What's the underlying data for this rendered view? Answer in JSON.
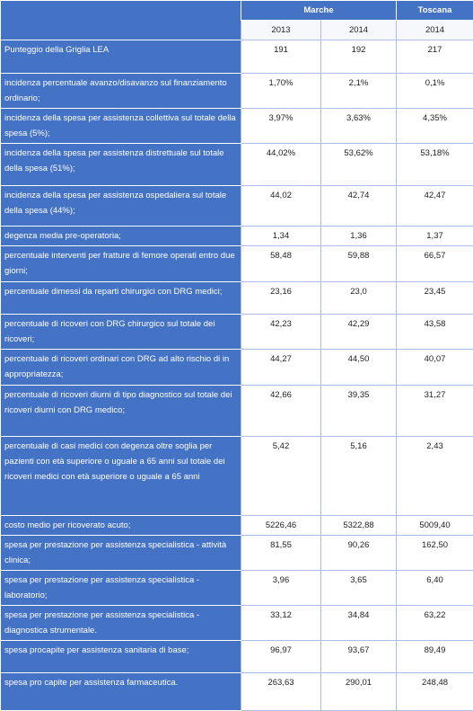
{
  "table": {
    "header": {
      "groups": [
        "Marche",
        "Toscana"
      ],
      "years": [
        "2013",
        "2014",
        "2014"
      ]
    },
    "rows": [
      [
        "Punteggio della Griglia LEA",
        "191",
        "192",
        "217"
      ],
      [
        "incidenza percentuale avanzo/disavanzo sul finanziamento ordinario;",
        "1,70%",
        "2,1%",
        "0,1%"
      ],
      [
        "incidenza della spesa per assistenza collettiva sul totale della spesa (5%);",
        "3,97%",
        "3,63%",
        "4,35%"
      ],
      [
        "incidenza della spesa per assistenza distrettuale sul totale della spesa (51%);",
        "44,02%",
        "53,62%",
        "53,18%"
      ],
      [
        "incidenza della spesa per assistenza ospedaliera sul totale della spesa (44%);",
        "44,02",
        "42,74",
        "42,47"
      ],
      [
        "degenza media pre-operatoria;",
        "1,34",
        "1,36",
        "1,37"
      ],
      [
        "percentuale interventi per fratture di femore operati entro due giorni;",
        "58,48",
        "59,88",
        "66,57"
      ],
      [
        "percentuale dimessi da reparti chirurgici con DRG medici;",
        "23,16",
        "23,0",
        "23,45"
      ],
      [
        "percentuale di ricoveri con DRG chirurgico sul totale dei ricoveri;",
        "42,23",
        "42,29",
        "43,58"
      ],
      [
        "percentuale di ricoveri ordinari con DRG ad alto rischio di in appropriatezza;",
        "44,27",
        "44,50",
        "40,07"
      ],
      [
        "percentuale di ricoveri diurni di tipo diagnostico sul totale dei ricoveri diurni con DRG medico;",
        "42,66",
        "39,35",
        "31,27"
      ],
      [
        "percentuale di casi medici con degenza oltre soglia per pazienti con età superiore o uguale a 65 anni sul totale dei ricoveri medici con età superiore o uguale a 65 anni",
        "5,42",
        "5,16",
        "2,43"
      ],
      [
        "costo medio per ricoverato acuto;",
        "5226,46",
        "5322,88",
        "5009,40"
      ],
      [
        "spesa per prestazione per assistenza specialistica - attività clinica;",
        "81,55",
        "90,26",
        "162,50"
      ],
      [
        "spesa per prestazione per assistenza specialistica - laboratorio;",
        "3,96",
        "3,65",
        "6,40"
      ],
      [
        "spesa per prestazione per assistenza specialistica - diagnostica strumentale.",
        "33,12",
        "34,84",
        "63,22"
      ],
      [
        "spesa procapite per assistenza sanitaria di base;",
        "96,97",
        "93,67",
        "89,49"
      ],
      [
        "spesa pro capite per assistenza farmaceutica.",
        "263,63",
        "290,01",
        "248,48"
      ]
    ]
  }
}
